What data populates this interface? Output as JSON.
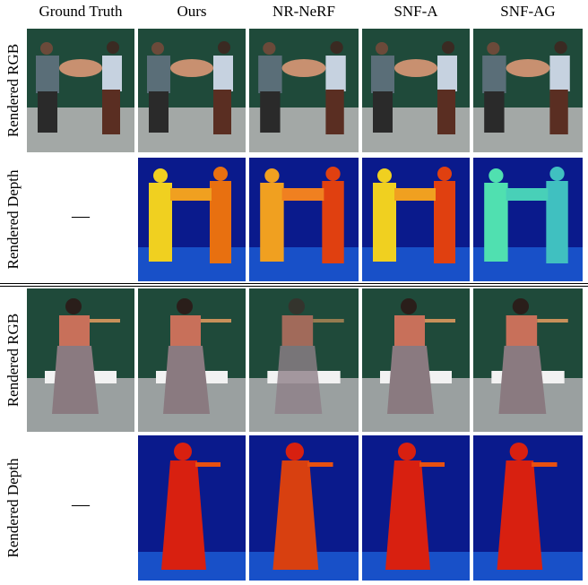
{
  "columns": [
    "Ground Truth",
    "Ours",
    "NR-NeRF",
    "SNF-A",
    "SNF-AG"
  ],
  "row_labels": [
    "Rendered RGB",
    "Rendered Depth",
    "Rendered RGB",
    "Rendered Depth"
  ],
  "missing_marker": "—",
  "colors": {
    "backdrop_green": "#1f4a3a",
    "floor_gray": "#9aa0a0",
    "depth_far": "#0a1a8c",
    "depth_near_warm": "#f0a020",
    "depth_near_hot": "#d82010",
    "depth_near_cool": "#50e0b0"
  }
}
